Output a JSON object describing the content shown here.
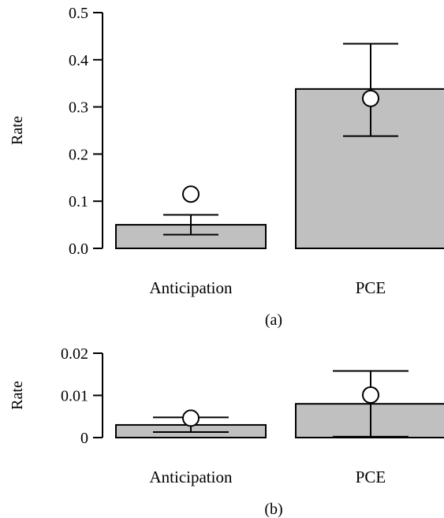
{
  "chart_data": [
    {
      "type": "bar",
      "panel_label": "(a)",
      "ylabel": "Rate",
      "ylim": [
        0,
        0.5
      ],
      "yticks": [
        "0.0",
        "0.1",
        "0.2",
        "0.3",
        "0.4",
        "0.5"
      ],
      "categories": [
        "Anticipation",
        "PCE"
      ],
      "values": [
        0.05,
        0.338
      ],
      "error_low": [
        0.029,
        0.238
      ],
      "error_high": [
        0.071,
        0.434
      ],
      "points": [
        0.115,
        0.318
      ],
      "bar_color": "#c0c0c0"
    },
    {
      "type": "bar",
      "panel_label": "(b)",
      "ylabel": "Rate",
      "ylim": [
        0,
        0.02
      ],
      "yticks": [
        "0",
        "0.01",
        "0.02"
      ],
      "categories": [
        "Anticipation",
        "PCE"
      ],
      "values": [
        0.003,
        0.008
      ],
      "error_low": [
        0.0013,
        0.0002
      ],
      "error_high": [
        0.0048,
        0.0158
      ],
      "points": [
        0.0046,
        0.0101
      ],
      "bar_color": "#c0c0c0"
    }
  ]
}
